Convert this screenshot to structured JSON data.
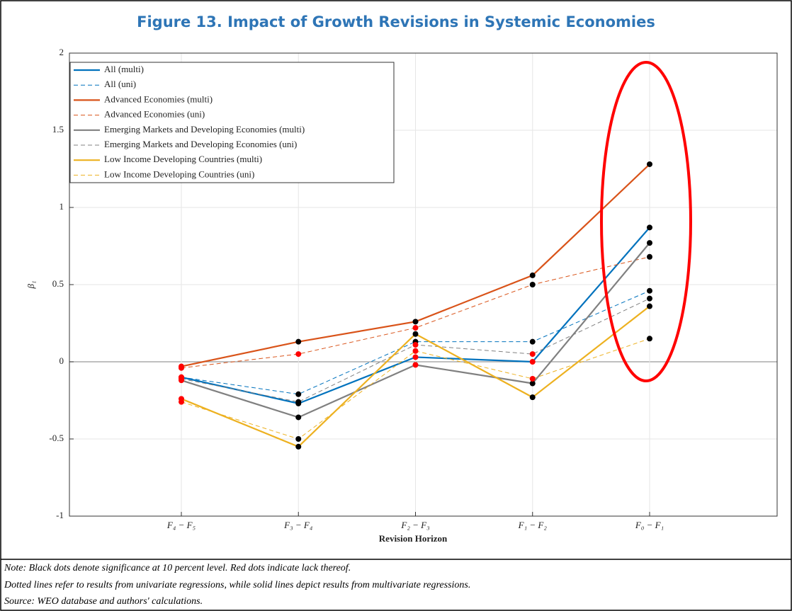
{
  "chart_data": {
    "type": "line",
    "title": "Figure 13. Impact of Growth Revisions in Systemic Economies",
    "x_label": "Revision Horizon",
    "y_label": "β₁",
    "categories": [
      "F₄ − F₅",
      "F₃ − F₄",
      "F₂ − F₃",
      "F₁ − F₂",
      "F₀ − F₁"
    ],
    "ylim": [
      -1,
      2
    ],
    "yticks": [
      -1,
      -0.5,
      0,
      0.5,
      1,
      1.5,
      2
    ],
    "grid": true,
    "legend": "upper-left",
    "series": [
      {
        "name": "All (multi)",
        "color": "#0072BD",
        "dashed": false,
        "values": [
          -0.1,
          -0.27,
          0.03,
          0.0,
          0.87
        ],
        "marker_colors": [
          "#ff0000",
          "#000000",
          "#ff0000",
          "#ff0000",
          "#000000"
        ]
      },
      {
        "name": "All (uni)",
        "color": "#0072BD",
        "dashed": true,
        "values": [
          -0.1,
          -0.21,
          0.13,
          0.13,
          0.46
        ],
        "marker_colors": [
          "#ff0000",
          "#000000",
          "#000000",
          "#000000",
          "#000000"
        ]
      },
      {
        "name": "Advanced Economies (multi)",
        "color": "#D95319",
        "dashed": false,
        "values": [
          -0.03,
          0.13,
          0.26,
          0.56,
          1.28
        ],
        "marker_colors": [
          "#ff0000",
          "#000000",
          "#000000",
          "#000000",
          "#000000"
        ]
      },
      {
        "name": "Advanced Economies (uni)",
        "color": "#D95319",
        "dashed": true,
        "values": [
          -0.04,
          0.05,
          0.22,
          0.5,
          0.68
        ],
        "marker_colors": [
          "#ff0000",
          "#ff0000",
          "#ff0000",
          "#000000",
          "#000000"
        ]
      },
      {
        "name": "Emerging Markets and Developing Economies (multi)",
        "color": "#808080",
        "dashed": false,
        "values": [
          -0.12,
          -0.36,
          -0.02,
          -0.14,
          0.77
        ],
        "marker_colors": [
          "#ff0000",
          "#000000",
          "#ff0000",
          "#000000",
          "#000000"
        ]
      },
      {
        "name": "Emerging Markets and Developing Economies (uni)",
        "color": "#808080",
        "dashed": true,
        "values": [
          -0.11,
          -0.26,
          0.11,
          0.05,
          0.41
        ],
        "marker_colors": [
          "#ff0000",
          "#000000",
          "#ff0000",
          "#ff0000",
          "#000000"
        ]
      },
      {
        "name": "Low Income Developing Countries (multi)",
        "color": "#EDB120",
        "dashed": false,
        "values": [
          -0.24,
          -0.55,
          0.18,
          -0.23,
          0.36
        ],
        "marker_colors": [
          "#ff0000",
          "#000000",
          "#000000",
          "#000000",
          "#000000"
        ]
      },
      {
        "name": "Low Income Developing Countries (uni)",
        "color": "#EDB120",
        "dashed": true,
        "values": [
          -0.26,
          -0.5,
          0.07,
          -0.11,
          0.15
        ],
        "marker_colors": [
          "#ff0000",
          "#000000",
          "#ff0000",
          "#ff0000",
          "#000000"
        ]
      }
    ],
    "notes": [
      "Note: Black dots denote significance at 10 percent level. Red dots indicate lack thereof.",
      "Dotted lines refer to results from univariate regressions, while solid lines depict results from multivariate regressions.",
      "Source: WEO database and authors' calculations."
    ]
  }
}
